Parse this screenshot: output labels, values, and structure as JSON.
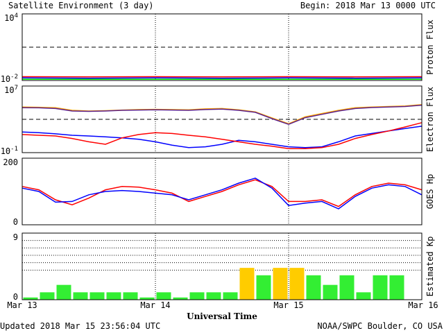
{
  "header": {
    "title": "Satellite Environment (3 day)",
    "begin": "Begin:  2018 Mar 13 0000 UTC"
  },
  "footer": {
    "updated": "Updated 2018 Mar 15 23:56:04 UTC",
    "credit": "NOAA/SWPC Boulder, CO USA",
    "xlabel": "Universal Time",
    "x_ticks": [
      "Mar 13",
      "Mar 14",
      "Mar 15",
      "Mar 16"
    ]
  },
  "colors": {
    "red": "#ff0000",
    "blue": "#0000ff",
    "green": "#00ee00",
    "orange": "#ffa500",
    "purple": "#5a1f8c",
    "kp_low": "#33ee33",
    "kp_mid": "#ffcc00"
  },
  "chart_data": [
    {
      "type": "line",
      "panel": "proton",
      "ylabel": "Proton Flux",
      "scale": "log",
      "ylim": [
        0.01,
        10000
      ],
      "y_tick_base": "10",
      "y_tick_exponents": [
        "4",
        "-2"
      ],
      "threshold": 10,
      "series": [
        {
          "color": "red",
          "x": [
            0,
            12,
            24,
            36,
            48,
            60,
            72
          ],
          "values": [
            0.022,
            0.021,
            0.022,
            0.021,
            0.022,
            0.021,
            0.022
          ]
        },
        {
          "color": "blue",
          "x": [
            0,
            12,
            24,
            36,
            48,
            60,
            72
          ],
          "values": [
            0.017,
            0.016,
            0.017,
            0.016,
            0.017,
            0.016,
            0.017
          ]
        },
        {
          "color": "green",
          "x": [
            0,
            12,
            24,
            36,
            48,
            60,
            72
          ],
          "values": [
            0.013,
            0.013,
            0.013,
            0.013,
            0.013,
            0.013,
            0.013
          ]
        }
      ]
    },
    {
      "type": "line",
      "panel": "electron",
      "ylabel": "Electron Flux",
      "scale": "log",
      "ylim": [
        0.1,
        10000000
      ],
      "y_tick_base": "10",
      "y_tick_exponents": [
        "7",
        "-1"
      ],
      "threshold": 1000,
      "series": [
        {
          "color": "orange",
          "x": [
            0,
            3,
            6,
            9,
            12,
            15,
            18,
            21,
            24,
            27,
            30,
            33,
            36,
            39,
            42,
            45,
            48,
            51,
            54,
            57,
            60,
            63,
            66,
            69,
            72
          ],
          "values": [
            30000,
            28000,
            25000,
            12000,
            10000,
            11000,
            13000,
            15000,
            16000,
            15000,
            14000,
            18000,
            20000,
            14000,
            8000,
            1500,
            300,
            2000,
            5000,
            12000,
            25000,
            30000,
            35000,
            40000,
            60000
          ]
        },
        {
          "color": "purple",
          "x": [
            0,
            3,
            6,
            9,
            12,
            15,
            18,
            21,
            24,
            27,
            30,
            33,
            36,
            39,
            42,
            45,
            48,
            51,
            54,
            57,
            60,
            63,
            66,
            69,
            72
          ],
          "values": [
            25000,
            24000,
            20000,
            10000,
            9000,
            10000,
            12000,
            13000,
            14000,
            13000,
            12000,
            15000,
            17000,
            12000,
            7000,
            1200,
            250,
            1600,
            4000,
            10000,
            20000,
            26000,
            30000,
            35000,
            50000
          ]
        },
        {
          "color": "blue",
          "x": [
            0,
            3,
            6,
            9,
            12,
            15,
            18,
            21,
            24,
            27,
            30,
            33,
            36,
            39,
            42,
            45,
            48,
            51,
            54,
            57,
            60,
            63,
            66,
            69,
            72
          ],
          "values": [
            30,
            25,
            18,
            12,
            10,
            8,
            6,
            4,
            2,
            0.8,
            0.4,
            0.5,
            1,
            3,
            2,
            1,
            0.5,
            0.4,
            0.5,
            2,
            10,
            20,
            40,
            80,
            150
          ]
        },
        {
          "color": "red",
          "x": [
            0,
            3,
            6,
            9,
            12,
            15,
            18,
            21,
            24,
            27,
            30,
            33,
            36,
            39,
            42,
            45,
            48,
            51,
            54,
            57,
            60,
            63,
            66,
            69,
            72
          ],
          "values": [
            15,
            12,
            10,
            5,
            2,
            1,
            6,
            15,
            25,
            20,
            12,
            8,
            4,
            2,
            1,
            0.6,
            0.3,
            0.3,
            0.4,
            1,
            5,
            15,
            40,
            120,
            400
          ]
        }
      ]
    },
    {
      "type": "line",
      "panel": "goes_hp",
      "ylabel": "GOES Hp",
      "scale": "linear",
      "ylim": [
        0,
        200
      ],
      "y_ticks": [
        "200",
        "0"
      ],
      "series": [
        {
          "color": "red",
          "x": [
            0,
            3,
            6,
            9,
            12,
            15,
            18,
            21,
            24,
            27,
            30,
            33,
            36,
            39,
            42,
            45,
            48,
            51,
            54,
            57,
            60,
            63,
            66,
            69,
            72
          ],
          "values": [
            115,
            105,
            75,
            60,
            80,
            105,
            115,
            113,
            105,
            95,
            70,
            85,
            100,
            120,
            135,
            115,
            70,
            70,
            75,
            55,
            90,
            115,
            125,
            120,
            105
          ]
        },
        {
          "color": "blue",
          "x": [
            0,
            3,
            6,
            9,
            12,
            15,
            18,
            21,
            24,
            27,
            30,
            33,
            36,
            39,
            42,
            45,
            48,
            51,
            54,
            57,
            60,
            63,
            66,
            69,
            72
          ],
          "values": [
            110,
            100,
            68,
            70,
            90,
            100,
            103,
            100,
            95,
            90,
            75,
            90,
            105,
            125,
            140,
            110,
            58,
            65,
            70,
            48,
            85,
            110,
            120,
            115,
            90
          ]
        }
      ]
    },
    {
      "type": "bar",
      "panel": "kp",
      "ylabel": "Estimated Kp",
      "ylim": [
        0,
        9
      ],
      "y_ticks": [
        "9",
        "0"
      ],
      "values": [
        0.3,
        1,
        2,
        1,
        1,
        1,
        1,
        0.3,
        1,
        0.3,
        1,
        1,
        1,
        4.3,
        3.3,
        4.3,
        4.3,
        3.3,
        2,
        3.3,
        1,
        3.3,
        3.3
      ]
    }
  ]
}
